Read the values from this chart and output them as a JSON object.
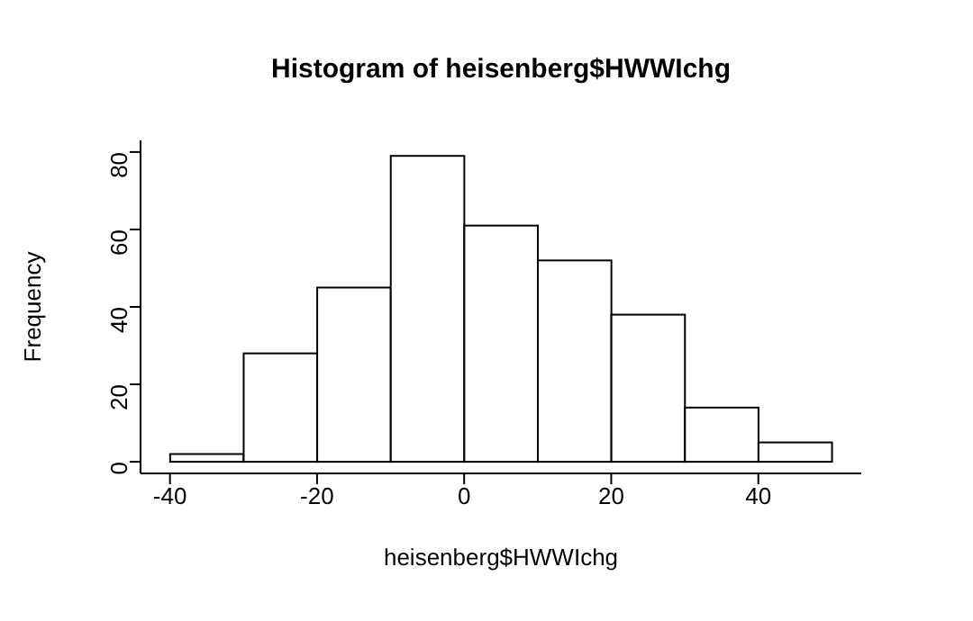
{
  "chart_data": {
    "type": "histogram",
    "title": "Histogram of heisenberg$HWWIchg",
    "xlabel": "heisenberg$HWWIchg",
    "ylabel": "Frequency",
    "bins": [
      -40,
      -30,
      -20,
      -10,
      0,
      10,
      20,
      30,
      40,
      50
    ],
    "values": [
      2,
      28,
      45,
      79,
      61,
      52,
      38,
      14,
      5
    ],
    "color": "#ffffff",
    "xlim": [
      -44,
      54
    ],
    "ylim": [
      -3,
      83
    ],
    "xticks": [
      -40,
      -20,
      0,
      20,
      40
    ],
    "yticks": [
      0,
      20,
      40,
      60,
      80
    ],
    "grid": false
  }
}
